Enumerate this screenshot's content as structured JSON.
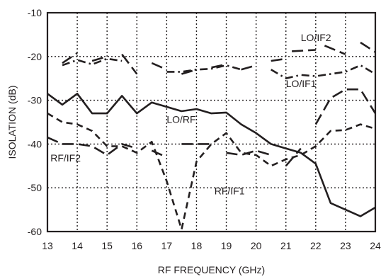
{
  "chart_data": {
    "type": "line",
    "title": "",
    "xlabel": "RF FREQUENCY (GHz)",
    "ylabel": "ISOLATION (dB)",
    "xlim": [
      13,
      24
    ],
    "ylim": [
      -60,
      -10
    ],
    "xticks": [
      "13",
      "14",
      "15",
      "16",
      "17",
      "18",
      "19",
      "20",
      "21",
      "22",
      "23",
      "24"
    ],
    "yticks": [
      "-10",
      "-20",
      "-30",
      "-40",
      "-50",
      "-60"
    ],
    "grid": true,
    "color": "#231f20",
    "series": [
      {
        "name": "LO/IF2",
        "style": "long-dash",
        "segments": [
          [
            [
              13.5,
              -21.5
            ],
            [
              14.0,
              -19.2
            ]
          ],
          [
            [
              14.5,
              -21.0
            ],
            [
              15.0,
              -20.0
            ]
          ],
          [
            [
              15.5,
              -19.5
            ],
            [
              16.0,
              -24.0
            ]
          ],
          [
            [
              16.5,
              -21.5
            ],
            [
              17.0,
              -23.0
            ]
          ],
          [
            [
              17.5,
              -24.0
            ],
            [
              18.0,
              -23.0
            ]
          ],
          [
            [
              18.5,
              -22.5
            ],
            [
              19.0,
              -21.8
            ]
          ],
          [
            [
              19.5,
              -23.0
            ],
            [
              20.0,
              -22.0
            ]
          ],
          [
            [
              20.5,
              -21.0
            ],
            [
              21.0,
              -20.5
            ]
          ],
          [
            [
              21.2,
              -18.8
            ],
            [
              22.0,
              -18.5
            ]
          ],
          [
            [
              22.3,
              -17.5
            ],
            [
              23.0,
              -19.5
            ]
          ],
          [
            [
              23.5,
              -16.8
            ],
            [
              24.0,
              -19.0
            ]
          ]
        ]
      },
      {
        "name": "LO/IF1",
        "style": "dash-dot",
        "segments": [
          [
            [
              13.5,
              -22.0
            ],
            [
              14.0,
              -20.8
            ],
            [
              14.5,
              -21.8
            ],
            [
              15.0,
              -20.5
            ],
            [
              15.5,
              -21.0
            ]
          ],
          [
            [
              17.0,
              -23.5
            ],
            [
              17.5,
              -23.5
            ],
            [
              18.0,
              -23.0
            ],
            [
              18.5,
              -22.8
            ],
            [
              19.0,
              -22.0
            ],
            [
              19.5,
              -23.0
            ]
          ],
          [
            [
              20.5,
              -23.0
            ],
            [
              21.0,
              -25.0
            ],
            [
              21.5,
              -24.2
            ],
            [
              22.0,
              -24.5
            ],
            [
              22.5,
              -24.0
            ],
            [
              23.0,
              -23.5
            ],
            [
              23.5,
              -22.0
            ],
            [
              24.0,
              -24.0
            ]
          ]
        ]
      },
      {
        "name": "LO/RF",
        "style": "solid",
        "segments": [
          [
            [
              13.0,
              -28.5
            ],
            [
              13.5,
              -31.0
            ],
            [
              14.0,
              -28.5
            ],
            [
              14.5,
              -33.0
            ],
            [
              15.0,
              -33.0
            ],
            [
              15.5,
              -29.0
            ],
            [
              16.0,
              -33.0
            ],
            [
              16.5,
              -30.5
            ],
            [
              17.0,
              -31.5
            ],
            [
              17.5,
              -32.5
            ],
            [
              18.0,
              -32.0
            ],
            [
              18.5,
              -33.0
            ],
            [
              19.0,
              -32.8
            ],
            [
              19.5,
              -35.5
            ],
            [
              20.0,
              -37.5
            ],
            [
              20.5,
              -40.0
            ],
            [
              21.0,
              -41.0
            ],
            [
              21.5,
              -42.0
            ],
            [
              22.0,
              -44.5
            ],
            [
              22.5,
              -53.5
            ],
            [
              23.0,
              -55.0
            ],
            [
              23.5,
              -56.5
            ],
            [
              24.0,
              -54.5
            ]
          ]
        ]
      },
      {
        "name": "RF/IF2",
        "style": "long-dash",
        "segments": [
          [
            [
              13.0,
              -38.5
            ],
            [
              13.5,
              -40.0
            ],
            [
              14.0,
              -40.0
            ],
            [
              14.5,
              -40.5
            ],
            [
              15.0,
              -42.5
            ],
            [
              15.5,
              -40.0
            ],
            [
              16.0,
              -41.0
            ]
          ],
          [
            [
              16.5,
              -41.5
            ],
            [
              17.0,
              -43.0
            ]
          ],
          [
            [
              17.5,
              -40.0
            ],
            [
              18.0,
              -40.0
            ],
            [
              18.5,
              -40.0
            ]
          ],
          [
            [
              19.0,
              -42.0
            ],
            [
              19.5,
              -42.5
            ],
            [
              20.0,
              -41.5
            ],
            [
              20.5,
              -42.5
            ]
          ],
          [
            [
              21.0,
              -45.0
            ],
            [
              21.5,
              -41.0
            ]
          ],
          [
            [
              22.0,
              -35.5
            ],
            [
              22.5,
              -29.5
            ],
            [
              23.0,
              -27.5
            ],
            [
              23.5,
              -27.5
            ],
            [
              24.0,
              -33.0
            ]
          ]
        ]
      },
      {
        "name": "RF/IF1",
        "style": "short-dash",
        "segments": [
          [
            [
              13.0,
              -33.0
            ],
            [
              13.5,
              -35.0
            ],
            [
              14.0,
              -35.5
            ],
            [
              14.5,
              -37.0
            ],
            [
              15.0,
              -40.5
            ],
            [
              15.5,
              -40.5
            ],
            [
              16.0,
              -42.0
            ],
            [
              16.5,
              -39.5
            ],
            [
              17.0,
              -48.5
            ],
            [
              17.5,
              -59.5
            ],
            [
              18.0,
              -44.0
            ],
            [
              18.5,
              -40.0
            ],
            [
              19.0,
              -37.5
            ],
            [
              19.5,
              -42.0
            ],
            [
              20.0,
              -42.5
            ],
            [
              20.5,
              -45.0
            ],
            [
              21.0,
              -43.5
            ],
            [
              21.5,
              -42.5
            ],
            [
              22.0,
              -40.5
            ],
            [
              22.5,
              -37.0
            ],
            [
              23.0,
              -36.8
            ],
            [
              23.5,
              -35.5
            ],
            [
              24.0,
              -36.5
            ]
          ]
        ]
      }
    ],
    "annotations": [
      {
        "text": "LO/IF2",
        "x": 21.5,
        "y": -16.5
      },
      {
        "text": "LO/IF1",
        "x": 21.0,
        "y": -27.0
      },
      {
        "text": "LO/RF",
        "x": 17.0,
        "y": -35.2
      },
      {
        "text": "RF/IF2",
        "x": 13.1,
        "y": -44.0
      },
      {
        "text": "RF/IF1",
        "x": 18.6,
        "y": -51.5
      }
    ]
  }
}
